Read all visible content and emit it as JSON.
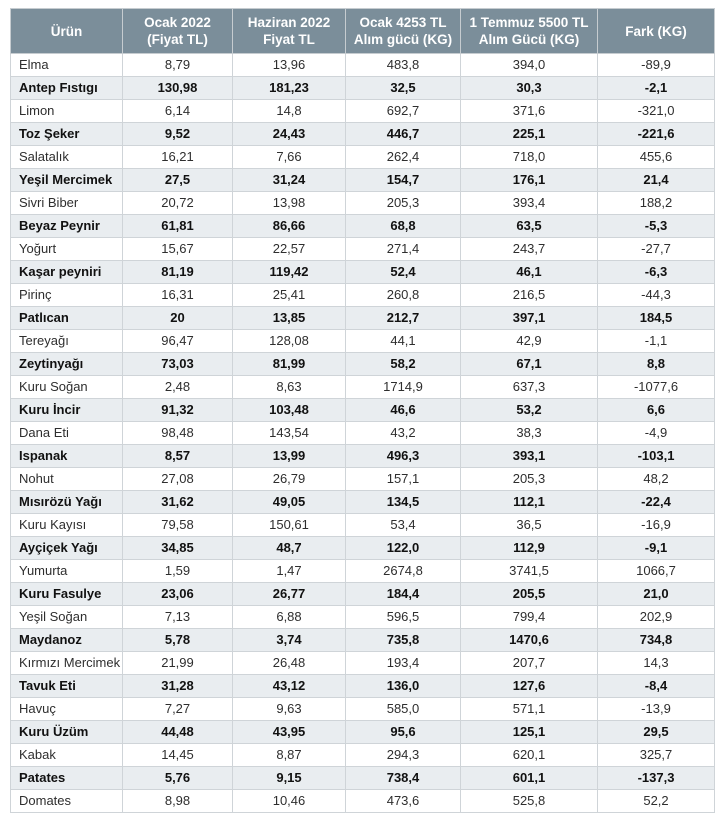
{
  "chart_data": {
    "type": "table",
    "title": "",
    "columns": [
      "Ürün",
      "Ocak 2022 (Fiyat TL)",
      "Haziran 2022 Fiyat TL",
      "Ocak 4253 TL Alım gücü (KG)",
      "1 Temmuz 5500 TL Alım Gücü (KG)",
      "Fark (KG)"
    ],
    "rows": [
      [
        "Elma",
        "8,79",
        "13,96",
        "483,8",
        "394,0",
        "-89,9"
      ],
      [
        "Antep Fıstıgı",
        "130,98",
        "181,23",
        "32,5",
        "30,3",
        "-2,1"
      ],
      [
        "Limon",
        "6,14",
        "14,8",
        "692,7",
        "371,6",
        "-321,0"
      ],
      [
        "Toz Şeker",
        "9,52",
        "24,43",
        "446,7",
        "225,1",
        "-221,6"
      ],
      [
        "Salatalık",
        "16,21",
        "7,66",
        "262,4",
        "718,0",
        "455,6"
      ],
      [
        "Yeşil Mercimek",
        "27,5",
        "31,24",
        "154,7",
        "176,1",
        "21,4"
      ],
      [
        "Sivri Biber",
        "20,72",
        "13,98",
        "205,3",
        "393,4",
        "188,2"
      ],
      [
        "Beyaz Peynir",
        "61,81",
        "86,66",
        "68,8",
        "63,5",
        "-5,3"
      ],
      [
        "Yoğurt",
        "15,67",
        "22,57",
        "271,4",
        "243,7",
        "-27,7"
      ],
      [
        "Kaşar peyniri",
        "81,19",
        "119,42",
        "52,4",
        "46,1",
        "-6,3"
      ],
      [
        "Pirinç",
        "16,31",
        "25,41",
        "260,8",
        "216,5",
        "-44,3"
      ],
      [
        "Patlıcan",
        "20",
        "13,85",
        "212,7",
        "397,1",
        "184,5"
      ],
      [
        "Tereyağı",
        "96,47",
        "128,08",
        "44,1",
        "42,9",
        "-1,1"
      ],
      [
        "Zeytinyağı",
        "73,03",
        "81,99",
        "58,2",
        "67,1",
        "8,8"
      ],
      [
        "Kuru Soğan",
        "2,48",
        "8,63",
        "1714,9",
        "637,3",
        "-1077,6"
      ],
      [
        "Kuru İncir",
        "91,32",
        "103,48",
        "46,6",
        "53,2",
        "6,6"
      ],
      [
        "Dana Eti",
        "98,48",
        "143,54",
        "43,2",
        "38,3",
        "-4,9"
      ],
      [
        "Ispanak",
        "8,57",
        "13,99",
        "496,3",
        "393,1",
        "-103,1"
      ],
      [
        "Nohut",
        "27,08",
        "26,79",
        "157,1",
        "205,3",
        "48,2"
      ],
      [
        "Mısırözü Yağı",
        "31,62",
        "49,05",
        "134,5",
        "112,1",
        "-22,4"
      ],
      [
        "Kuru Kayısı",
        "79,58",
        "150,61",
        "53,4",
        "36,5",
        "-16,9"
      ],
      [
        "Ayçiçek Yağı",
        "34,85",
        "48,7",
        "122,0",
        "112,9",
        "-9,1"
      ],
      [
        "Yumurta",
        "1,59",
        "1,47",
        "2674,8",
        "3741,5",
        "1066,7"
      ],
      [
        "Kuru Fasulye",
        "23,06",
        "26,77",
        "184,4",
        "205,5",
        "21,0"
      ],
      [
        "Yeşil Soğan",
        "7,13",
        "6,88",
        "596,5",
        "799,4",
        "202,9"
      ],
      [
        "Maydanoz",
        "5,78",
        "3,74",
        "735,8",
        "1470,6",
        "734,8"
      ],
      [
        "Kırmızı Mercimek",
        "21,99",
        "26,48",
        "193,4",
        "207,7",
        "14,3"
      ],
      [
        "Tavuk Eti",
        "31,28",
        "43,12",
        "136,0",
        "127,6",
        "-8,4"
      ],
      [
        "Havuç",
        "7,27",
        "9,63",
        "585,0",
        "571,1",
        "-13,9"
      ],
      [
        "Kuru Üzüm",
        "44,48",
        "43,95",
        "95,6",
        "125,1",
        "29,5"
      ],
      [
        "Kabak",
        "14,45",
        "8,87",
        "294,3",
        "620,1",
        "325,7"
      ],
      [
        "Patates",
        "5,76",
        "9,15",
        "738,4",
        "601,1",
        "-137,3"
      ],
      [
        "Domates",
        "8,98",
        "10,46",
        "473,6",
        "525,8",
        "52,2"
      ]
    ],
    "layout_hints": {
      "striping": "every second row shaded and bold",
      "first_column_align": "left",
      "numeric_align": "center"
    }
  },
  "colors": {
    "header_bg": "#7b8e9a",
    "header_text": "#ffffff",
    "row_alt_bg": "#e9edf0",
    "border": "#cfd4d8",
    "page_bg": "#ffffff"
  }
}
